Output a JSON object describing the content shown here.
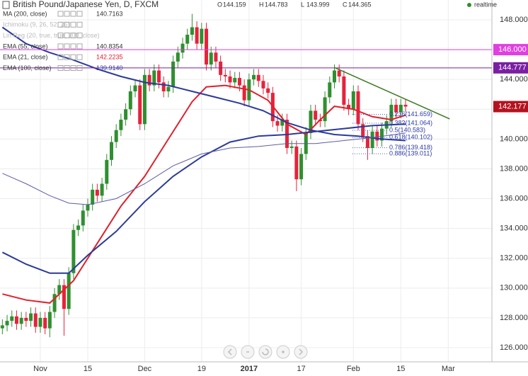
{
  "chart_data": {
    "type": "candlestick",
    "title": "British Pound/Japanese Yen, D, FXCM",
    "header_ohlc": [
      {
        "label": "O",
        "value": "144.159"
      },
      {
        "label": "H",
        "value": "144.783"
      },
      {
        "label": "L",
        "value": "143.999"
      },
      {
        "label": "C",
        "value": "144.365"
      }
    ],
    "status": "realtime",
    "indicators": [
      {
        "name": "MA (200, close)",
        "value": "140.7163",
        "color": "#333333",
        "visible": true
      },
      {
        "name": "Ichimoku (9, 26, 52, 26)",
        "visible": false
      },
      {
        "name": "Lin Reg (20, true, true, 200, close)",
        "visible": false
      },
      {
        "name": "EMA (55, close)",
        "value": "140.8354",
        "color": "#333333",
        "visible": true
      },
      {
        "name": "EMA (21, close)",
        "value": "142.2235",
        "color": "#e0202c",
        "visible": true
      },
      {
        "name": "EMA (100, close)",
        "value": "139.9140",
        "color": "#2b3a9a",
        "visible": true
      }
    ],
    "up_color": "#2f8f2f",
    "down_color": "#e5233b",
    "open": [
      127.3,
      127.5,
      127.8,
      128.1,
      127.6,
      128.0,
      127.8,
      128.3,
      127.4,
      128.0,
      127.3,
      128.4,
      129.6,
      130.2,
      128.6,
      131.0,
      133.9,
      134.2,
      135.2,
      135.6,
      136.6,
      136.2,
      137.0,
      138.6,
      139.8,
      140.6,
      141.3,
      142.0,
      143.2,
      143.6,
      141.0,
      144.3,
      143.6,
      144.6,
      143.8,
      143.2,
      143.5,
      145.2,
      145.8,
      146.4,
      147.0,
      147.5,
      146.4,
      147.4,
      145.0,
      145.8,
      145.2,
      144.3,
      144.2,
      143.8,
      144.1,
      143.6,
      142.6,
      144.0,
      144.3,
      143.9,
      143.4,
      143.1,
      141.2,
      140.9,
      141.3,
      139.4,
      139.5,
      137.3,
      139.0,
      140.4,
      141.9,
      141.3,
      141.2,
      142.8,
      143.8,
      144.6,
      144.2,
      142.3,
      142.0,
      143.2,
      141.0,
      140.2,
      139.4,
      140.5,
      139.9,
      140.7,
      141.2,
      142.3,
      141.8,
      142.3
    ],
    "high": [
      127.9,
      128.2,
      128.5,
      128.5,
      128.4,
      128.4,
      128.7,
      128.7,
      128.4,
      128.4,
      128.8,
      130.0,
      130.6,
      130.6,
      131.4,
      134.3,
      134.6,
      135.6,
      136.0,
      137.0,
      137.0,
      137.4,
      139.0,
      140.2,
      141.0,
      141.7,
      142.4,
      143.6,
      144.0,
      144.0,
      144.7,
      144.7,
      145.0,
      145.0,
      144.2,
      143.9,
      145.6,
      146.2,
      146.8,
      147.4,
      148.4,
      147.9,
      147.8,
      147.8,
      146.2,
      146.2,
      145.6,
      144.7,
      144.6,
      144.5,
      144.5,
      144.0,
      144.4,
      144.7,
      144.7,
      144.3,
      143.8,
      143.5,
      141.6,
      141.7,
      141.7,
      139.9,
      139.9,
      139.4,
      140.8,
      142.3,
      142.3,
      141.7,
      143.2,
      144.2,
      145.0,
      145.0,
      144.6,
      142.7,
      143.6,
      143.6,
      141.4,
      140.6,
      140.9,
      140.9,
      141.1,
      141.6,
      142.7,
      142.7,
      142.7,
      142.7
    ],
    "low": [
      126.9,
      127.1,
      127.4,
      127.2,
      127.2,
      127.4,
      127.4,
      127.0,
      127.0,
      126.9,
      126.7,
      128.0,
      129.2,
      126.8,
      128.2,
      130.6,
      133.5,
      133.8,
      134.8,
      135.2,
      135.8,
      135.8,
      136.6,
      138.2,
      139.4,
      140.2,
      140.9,
      141.6,
      142.8,
      140.6,
      140.6,
      143.2,
      143.2,
      143.4,
      142.8,
      142.8,
      143.1,
      144.8,
      145.4,
      146.0,
      146.6,
      146.0,
      146.0,
      144.6,
      144.6,
      144.8,
      143.9,
      143.8,
      143.4,
      143.4,
      143.2,
      142.2,
      142.2,
      143.6,
      143.5,
      143.0,
      142.7,
      140.8,
      140.5,
      140.5,
      139.0,
      139.0,
      136.5,
      136.9,
      138.6,
      140.0,
      140.9,
      140.8,
      140.8,
      142.4,
      143.4,
      143.8,
      141.9,
      141.6,
      141.6,
      140.6,
      139.8,
      138.6,
      139.0,
      139.5,
      139.5,
      140.3,
      140.8,
      141.4,
      141.4,
      141.8
    ],
    "close": [
      127.5,
      127.8,
      128.1,
      127.6,
      128.0,
      127.8,
      128.3,
      127.4,
      128.0,
      127.3,
      128.4,
      129.6,
      130.2,
      128.6,
      131.0,
      133.9,
      134.2,
      135.2,
      135.6,
      136.6,
      136.2,
      137.0,
      138.6,
      139.8,
      140.6,
      141.3,
      142.0,
      143.2,
      143.6,
      141.0,
      144.3,
      143.6,
      144.6,
      143.8,
      143.2,
      143.5,
      145.2,
      145.8,
      146.4,
      147.0,
      147.5,
      146.4,
      147.4,
      145.0,
      145.8,
      145.2,
      144.3,
      144.2,
      143.8,
      144.1,
      143.6,
      142.6,
      144.0,
      144.3,
      143.9,
      143.4,
      143.1,
      141.2,
      140.9,
      141.3,
      139.4,
      139.5,
      137.3,
      139.0,
      140.4,
      141.9,
      141.3,
      141.2,
      142.8,
      143.8,
      144.6,
      144.2,
      142.3,
      142.0,
      143.2,
      141.0,
      140.2,
      139.4,
      140.5,
      139.9,
      140.7,
      141.2,
      142.3,
      141.8,
      142.3,
      142.18
    ],
    "lines": [
      {
        "color": "#e0202c",
        "width": 2,
        "x": [
          0,
          5,
          10,
          15,
          20,
          25,
          30,
          35,
          40,
          43,
          47,
          52,
          56,
          60,
          64,
          67,
          70,
          74,
          78,
          82,
          85
        ],
        "values": [
          129.6,
          129.2,
          129.0,
          130.5,
          133.0,
          135.5,
          137.5,
          140.0,
          142.5,
          143.5,
          143.6,
          143.3,
          142.6,
          141.0,
          140.3,
          141.3,
          142.2,
          142.0,
          141.5,
          141.3,
          141.6
        ]
      },
      {
        "color": "#2b3a9a",
        "width": 2,
        "x": [
          0,
          5,
          10,
          14,
          18,
          24,
          30,
          36,
          42,
          48,
          54,
          60,
          66,
          72,
          78,
          85
        ],
        "values": [
          132.4,
          131.6,
          131.0,
          131.0,
          132.2,
          133.8,
          135.8,
          137.5,
          138.8,
          139.8,
          140.2,
          140.3,
          140.5,
          140.7,
          140.9,
          141.0
        ]
      },
      {
        "color": "#2b3a9a",
        "width": 2,
        "x": [
          0,
          5,
          10,
          15,
          20,
          25,
          30,
          35,
          40,
          45,
          50,
          55,
          60,
          65,
          70,
          75,
          80,
          85
        ],
        "values": [
          147.5,
          146.4,
          145.8,
          145.3,
          144.7,
          144.2,
          143.8,
          143.6,
          143.2,
          142.8,
          142.4,
          141.9,
          141.1,
          140.6,
          140.3,
          140.2,
          140.0,
          139.9
        ]
      },
      {
        "color": "#5c5ca8",
        "width": 1,
        "x": [
          0,
          5,
          10,
          14,
          18,
          24,
          30,
          36,
          42,
          48,
          54,
          60,
          66,
          72,
          78,
          85
        ],
        "values": [
          137.7,
          137.0,
          136.2,
          135.7,
          135.6,
          136.0,
          137.0,
          138.2,
          139.0,
          139.4,
          139.5,
          139.7,
          139.7,
          139.9,
          140.1,
          140.4
        ]
      }
    ],
    "levels": [
      {
        "value": 146.0,
        "label": "146.000",
        "color": "#e040e0"
      },
      {
        "value": 144.777,
        "label": "144.777",
        "color": "#7b1fa2"
      }
    ],
    "last_price": {
      "value": 142.177,
      "label": "142.177",
      "color": "#b3121f"
    },
    "trendline": {
      "color": "#3b7a1e",
      "x": [
        70,
        94.3
      ],
      "values": [
        144.8,
        141.35
      ]
    },
    "fib_levels": [
      {
        "value": 141.659,
        "label": "0.236(141.659)"
      },
      {
        "value": 141.064,
        "label": "0.382(141.064)"
      },
      {
        "value": 140.583,
        "label": "0.5(140.583)"
      },
      {
        "value": 140.102,
        "label": "0.618(140.102)"
      },
      {
        "value": 139.418,
        "label": "0.786(139.418)"
      },
      {
        "value": 139.011,
        "label": "0.886(139.011)"
      }
    ],
    "xlim": [
      -0.5,
      103.2
    ],
    "xticks": [
      {
        "value": 8,
        "label": "Nov"
      },
      {
        "value": 18,
        "label": "15"
      },
      {
        "value": 30,
        "label": "Dec"
      },
      {
        "value": 42,
        "label": "19"
      },
      {
        "value": 52,
        "label": "2017"
      },
      {
        "value": 63,
        "label": "17"
      },
      {
        "value": 74,
        "label": "Feb"
      },
      {
        "value": 84,
        "label": "15"
      },
      {
        "value": 94,
        "label": "Mar"
      }
    ],
    "ylim": [
      125.05,
      149.33
    ],
    "yticks": [
      {
        "value": 126,
        "label": "126.000"
      },
      {
        "value": 128,
        "label": "128.000"
      },
      {
        "value": 130,
        "label": "130.000"
      },
      {
        "value": 132,
        "label": "132.000"
      },
      {
        "value": 134,
        "label": "134.000"
      },
      {
        "value": 136,
        "label": "136.000"
      },
      {
        "value": 138,
        "label": "138.000"
      },
      {
        "value": 140,
        "label": "140.000"
      },
      {
        "value": 142,
        "label": "142.000"
      },
      {
        "value": 144,
        "label": "144.000"
      },
      {
        "value": 146,
        "label": "146.000"
      },
      {
        "value": 148,
        "label": "148.000"
      }
    ],
    "grid": true
  }
}
